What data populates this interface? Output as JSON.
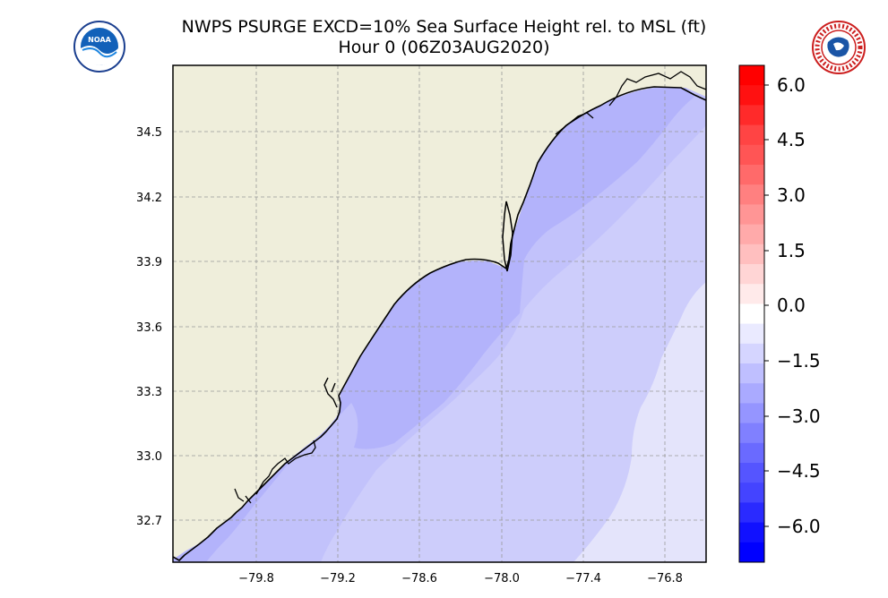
{
  "header": {
    "title_line1": "NWPS PSURGE EXCD=10% Sea Surface Height rel. to MSL (ft)",
    "title_line2": "Hour 0 (06Z03AUG2020)"
  },
  "logos": {
    "left": {
      "icon": "noaa-logo",
      "text": "NOAA"
    },
    "right": {
      "icon": "nws-logo",
      "text": "NATIONAL WEATHER SERVICE"
    }
  },
  "map": {
    "land_color": "#efeedb",
    "coast_color": "#000000",
    "grid": true,
    "lat_labels": [
      "34.5",
      "34.2",
      "33.9",
      "33.6",
      "33.3",
      "33.0",
      "32.7"
    ],
    "lon_labels": [
      "−79.8",
      "−79.2",
      "−78.6",
      "−78.0",
      "−77.4",
      "−76.8"
    ]
  },
  "colorbar": {
    "range": [
      -6.9,
      6.5
    ],
    "tick_labels": [
      "6.0",
      "4.5",
      "3.0",
      "1.5",
      "0.0",
      "−1.5",
      "−3.0",
      "−4.5",
      "−6.0"
    ],
    "colors_top_to_bottom": [
      "#ff0000",
      "#ff1111",
      "#ff2a2a",
      "#ff4444",
      "#ff5555",
      "#ff6a6a",
      "#ff8080",
      "#ff9595",
      "#ffaaaa",
      "#ffbfbf",
      "#ffd5d5",
      "#ffeaea",
      "#ffffff",
      "#eaeaff",
      "#d5d5ff",
      "#bfbfff",
      "#aaaaff",
      "#9595ff",
      "#8080ff",
      "#6a6aff",
      "#5555ff",
      "#4444ff",
      "#2a2aff",
      "#1111ff",
      "#0000ff"
    ]
  }
}
